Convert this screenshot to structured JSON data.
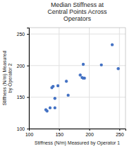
{
  "chart_data": {
    "type": "scatter",
    "title": "Median Stiffness at\nCentral Points Across\nOperators",
    "xlabel": "Stiffness (N/m) Measured by Operator 1",
    "ylabel": "Stiffness (N/m) Measured\nby Operator 2",
    "x": [
      128,
      130,
      135,
      138,
      140,
      143,
      143,
      148,
      162,
      165,
      185,
      188,
      190,
      190,
      192,
      220,
      238,
      248
    ],
    "values": [
      130,
      128,
      133,
      165,
      167,
      148,
      133,
      168,
      175,
      153,
      185,
      181,
      180,
      202,
      180,
      201,
      233,
      195
    ],
    "color": "#4472C4",
    "xlim": [
      100,
      260
    ],
    "ylim": [
      100,
      260
    ],
    "xticks": [
      100,
      150,
      200,
      250
    ],
    "yticks": [
      100,
      150,
      200,
      250
    ],
    "grid": true
  }
}
